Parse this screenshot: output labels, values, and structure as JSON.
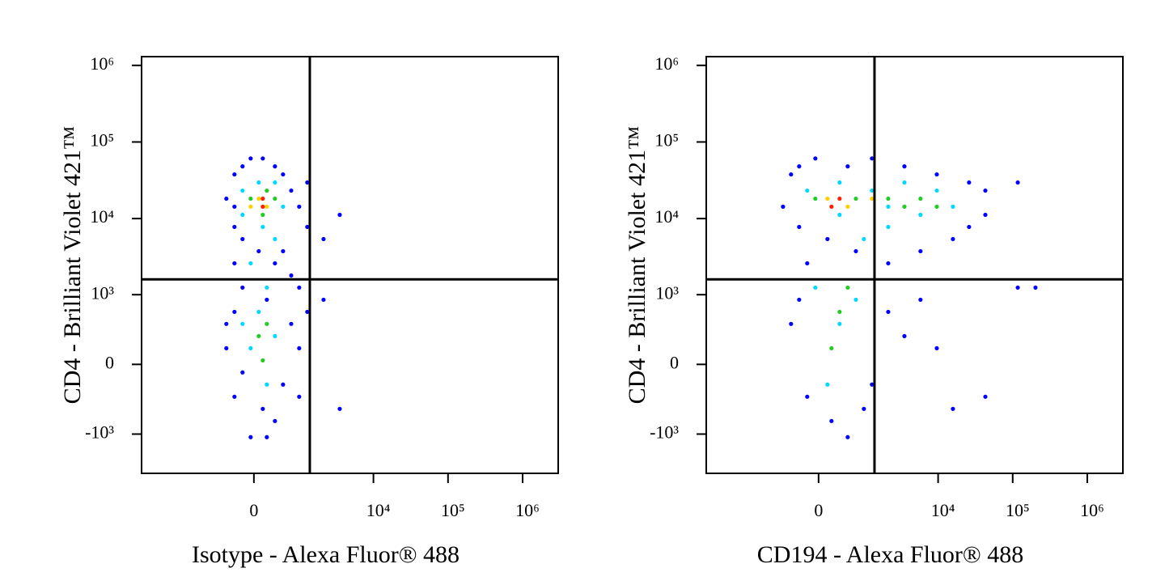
{
  "chart_data": [
    {
      "type": "scatter",
      "xlabel": "Isotype - Alexa Fluor® 488",
      "ylabel": "CD4 - Brilliant Violet 421™",
      "xscale": "biexponential",
      "yscale": "biexponential",
      "xlim": [
        -8000,
        3000000
      ],
      "ylim": [
        -3300,
        1300000
      ],
      "xticks": [
        0,
        {
          "value": 10000,
          "label": "10⁴"
        },
        {
          "value": 100000,
          "label": "10⁵"
        },
        {
          "value": 1000000,
          "label": "10⁶"
        }
      ],
      "yticks": [
        {
          "value": -1000,
          "label": "-10³"
        },
        0,
        {
          "value": 1000,
          "label": "10³"
        },
        {
          "value": 10000,
          "label": "10⁴"
        },
        {
          "value": 100000,
          "label": "10⁵"
        },
        {
          "value": 1000000,
          "label": "10⁶"
        }
      ],
      "quadrant": [
        1360,
        1600
      ],
      "series": [
        {
          "color": "#0000ff",
          "x": [
            -478,
            -318,
            -179,
            -50,
            139,
            348,
            513,
            712,
            950,
            1250,
            2116,
            3520,
            -318,
            -179,
            75,
            348,
            513,
            712,
            -318,
            950,
            -179,
            205,
            -318,
            -478,
            712,
            950,
            -179,
            513,
            -318,
            139,
            348,
            -50,
            205,
            1250,
            2116,
            -478,
            950,
            3520,
            -318,
            1250
          ],
          "values": [
            18200,
            37700,
            48000,
            61000,
            61000,
            48000,
            37700,
            23200,
            14300,
            7780,
            5400,
            11200,
            7780,
            5400,
            3750,
            2600,
            3750,
            1800,
            2600,
            1245,
            1245,
            855,
            580,
            385,
            385,
            126,
            -61,
            -161,
            -283,
            -443,
            -663,
            -1100,
            -1100,
            580,
            855,
            126,
            -283,
            -443,
            14300,
            29600
          ]
        },
        {
          "color": "#00d8ff",
          "x": [
            -179,
            75,
            348,
            513,
            -179,
            139,
            348,
            -50,
            205,
            75,
            348,
            -50,
            205,
            -179
          ],
          "values": [
            23200,
            29600,
            29600,
            14300,
            11200,
            7780,
            5400,
            2600,
            1245,
            580,
            239,
            126,
            -161,
            385
          ]
        },
        {
          "color": "#22cc22",
          "x": [
            -50,
            205,
            348,
            139,
            205,
            75,
            139
          ],
          "values": [
            18200,
            23200,
            18200,
            11200,
            385,
            239,
            30
          ]
        },
        {
          "color": "#ffd000",
          "x": [
            75,
            205,
            -50
          ],
          "values": [
            18200,
            14300,
            14300
          ]
        },
        {
          "color": "#ff2000",
          "x": [
            139,
            139
          ],
          "values": [
            14300,
            18200
          ]
        }
      ]
    },
    {
      "type": "scatter",
      "xlabel": "CD194 - Alexa Fluor® 488",
      "ylabel": "CD4 - Brilliant Violet 421™",
      "xscale": "biexponential",
      "yscale": "biexponential",
      "xlim": [
        -8000,
        3000000
      ],
      "ylim": [
        -3300,
        1300000
      ],
      "xticks": [
        0,
        {
          "value": 10000,
          "label": "10⁴"
        },
        {
          "value": 100000,
          "label": "10⁵"
        },
        {
          "value": 1000000,
          "label": "10⁶"
        }
      ],
      "yticks": [
        {
          "value": -1000,
          "label": "-10³"
        },
        0,
        {
          "value": 1000,
          "label": "10³"
        },
        {
          "value": 10000,
          "label": "10⁴"
        },
        {
          "value": 100000,
          "label": "10⁵"
        },
        {
          "value": 1000000,
          "label": "10⁶"
        }
      ],
      "quadrant": [
        1360,
        1600
      ],
      "series": [
        {
          "color": "#0000ff",
          "x": [
            -478,
            -318,
            -50,
            513,
            1250,
            3520,
            9600,
            26000,
            43000,
            -666,
            -318,
            139,
            712,
            2116,
            5800,
            15800,
            26000,
            43000,
            117000,
            202000,
            -318,
            -478,
            -179,
            205,
            513,
            950,
            3520,
            9600,
            15800,
            5800,
            2116,
            1250,
            -179,
            117000,
            43000
          ],
          "values": [
            37700,
            48000,
            61000,
            48000,
            61000,
            48000,
            37700,
            29600,
            23200,
            14300,
            7780,
            5400,
            3750,
            2600,
            3750,
            5400,
            7780,
            11200,
            1245,
            1245,
            855,
            385,
            -283,
            -663,
            -1100,
            -443,
            239,
            126,
            -443,
            855,
            580,
            -161,
            2600,
            29600,
            -283
          ]
        },
        {
          "color": "#00d8ff",
          "x": [
            -179,
            348,
            1250,
            3520,
            9600,
            15800,
            5800,
            2116,
            348,
            950,
            -50,
            348,
            139,
            712,
            2116
          ],
          "values": [
            23200,
            29600,
            23200,
            29600,
            23200,
            14300,
            11200,
            14300,
            11200,
            5400,
            1245,
            385,
            -161,
            855,
            7780
          ]
        },
        {
          "color": "#22cc22",
          "x": [
            -50,
            712,
            2116,
            5800,
            9600,
            3520,
            348,
            205,
            513
          ],
          "values": [
            18200,
            18200,
            18200,
            18200,
            14300,
            14300,
            580,
            126,
            1245
          ]
        },
        {
          "color": "#ffd000",
          "x": [
            139,
            513,
            1250
          ],
          "values": [
            18200,
            14300,
            18200
          ]
        },
        {
          "color": "#ff2000",
          "x": [
            205,
            348
          ],
          "values": [
            14300,
            18200
          ]
        }
      ]
    }
  ]
}
